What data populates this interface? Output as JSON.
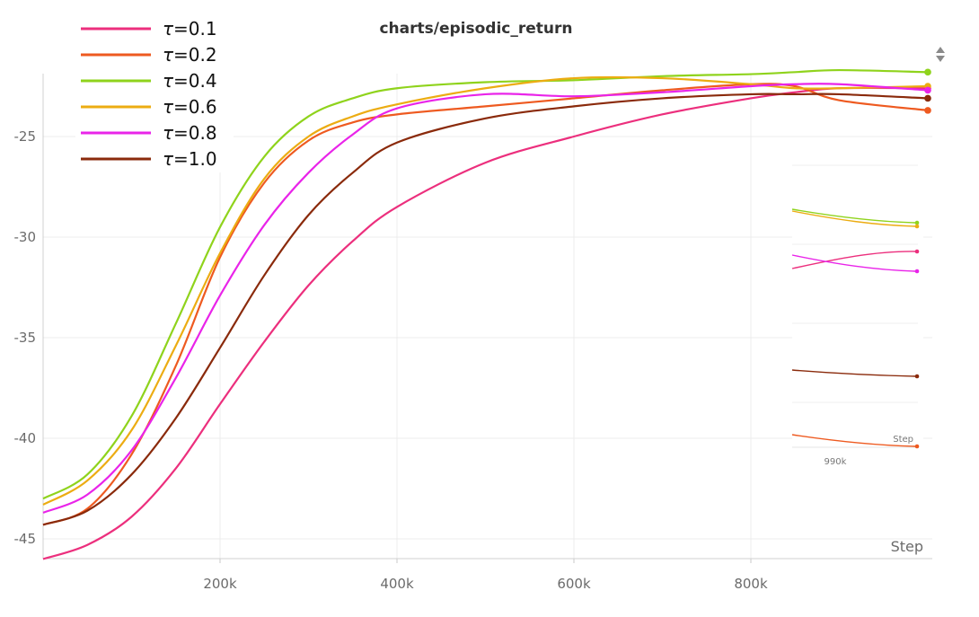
{
  "chart_data": {
    "type": "line",
    "title": "charts/episodic_return",
    "xlabel": "Step",
    "ylabel": "",
    "xlim": [
      0,
      1000000
    ],
    "ylim": [
      -46,
      -21.5
    ],
    "x_ticks": [
      200000,
      400000,
      600000,
      800000
    ],
    "x_tick_labels": [
      "200k",
      "400k",
      "600k",
      "800k"
    ],
    "y_ticks": [
      -25,
      -30,
      -35,
      -40,
      -45
    ],
    "y_tick_labels": [
      "-25",
      "-30",
      "-35",
      "-40",
      "-45"
    ],
    "grid": true,
    "legend_position": "top-left",
    "legend_symbol": "τ",
    "series": [
      {
        "name": "=0.1",
        "color": "#ec2f7d",
        "x": [
          0,
          50000,
          100000,
          150000,
          200000,
          250000,
          300000,
          350000,
          400000,
          500000,
          600000,
          700000,
          800000,
          850000,
          900000,
          1000000
        ],
        "y": [
          -46,
          -45.3,
          -43.9,
          -41.5,
          -38.3,
          -35.2,
          -32.4,
          -30.2,
          -28.5,
          -26.3,
          -25.0,
          -23.9,
          -23.1,
          -22.8,
          -22.6,
          -22.6
        ]
      },
      {
        "name": "=0.2",
        "color": "#ee5a20",
        "x": [
          0,
          50000,
          100000,
          150000,
          200000,
          250000,
          300000,
          350000,
          400000,
          500000,
          600000,
          700000,
          800000,
          850000,
          900000,
          1000000
        ],
        "y": [
          -44.3,
          -43.5,
          -40.8,
          -36.4,
          -31.0,
          -27.3,
          -25.2,
          -24.3,
          -23.9,
          -23.5,
          -23.1,
          -22.7,
          -22.4,
          -22.5,
          -23.2,
          -23.7
        ]
      },
      {
        "name": "=0.4",
        "color": "#8fd31c",
        "x": [
          0,
          50000,
          100000,
          150000,
          200000,
          250000,
          300000,
          350000,
          400000,
          500000,
          600000,
          700000,
          800000,
          850000,
          900000,
          1000000
        ],
        "y": [
          -43.0,
          -41.8,
          -38.9,
          -34.3,
          -29.5,
          -26.0,
          -24.0,
          -23.1,
          -22.6,
          -22.3,
          -22.2,
          -22.0,
          -21.9,
          -21.8,
          -21.7,
          -21.8
        ]
      },
      {
        "name": "=0.6",
        "color": "#ecac12",
        "x": [
          0,
          50000,
          100000,
          150000,
          200000,
          250000,
          300000,
          350000,
          400000,
          500000,
          600000,
          700000,
          800000,
          850000,
          900000,
          1000000
        ],
        "y": [
          -43.3,
          -42.1,
          -39.6,
          -35.4,
          -30.8,
          -27.1,
          -25.0,
          -24.0,
          -23.4,
          -22.6,
          -22.1,
          -22.1,
          -22.4,
          -22.6,
          -22.6,
          -22.5
        ]
      },
      {
        "name": "=0.8",
        "color": "#e924e9",
        "x": [
          0,
          50000,
          100000,
          150000,
          200000,
          250000,
          300000,
          350000,
          400000,
          500000,
          600000,
          700000,
          800000,
          850000,
          900000,
          1000000
        ],
        "y": [
          -43.7,
          -42.8,
          -40.6,
          -37.0,
          -32.9,
          -29.4,
          -26.8,
          -24.9,
          -23.6,
          -22.9,
          -23.0,
          -22.8,
          -22.5,
          -22.4,
          -22.4,
          -22.7
        ]
      },
      {
        "name": "=1.0",
        "color": "#8a2a0b",
        "x": [
          0,
          50000,
          100000,
          150000,
          200000,
          250000,
          300000,
          350000,
          400000,
          500000,
          600000,
          700000,
          800000,
          850000,
          900000,
          1000000
        ],
        "y": [
          -44.3,
          -43.6,
          -41.8,
          -39.0,
          -35.5,
          -31.9,
          -28.9,
          -26.8,
          -25.3,
          -24.1,
          -23.5,
          -23.1,
          -22.9,
          -22.9,
          -22.9,
          -23.1
        ]
      }
    ],
    "inset": {
      "x_tick_label": "990k",
      "step_label": "Step"
    }
  }
}
